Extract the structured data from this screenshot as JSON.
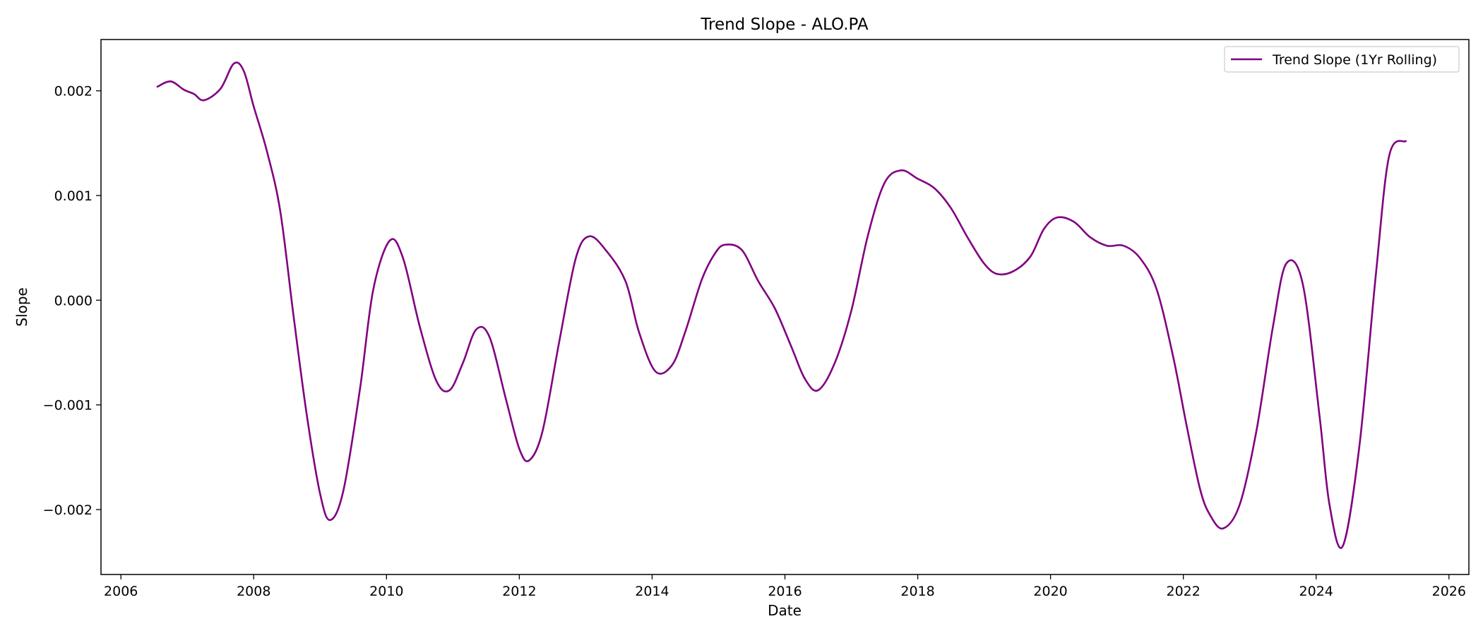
{
  "chart_data": {
    "type": "line",
    "title": "Trend Slope - ALO.PA",
    "xlabel": "Date",
    "ylabel": "Slope",
    "xlim": [
      2005.7,
      2026.3
    ],
    "ylim": [
      -0.00262,
      0.00249
    ],
    "x_ticks": [
      2006,
      2008,
      2010,
      2012,
      2014,
      2016,
      2018,
      2020,
      2022,
      2024,
      2026
    ],
    "y_ticks": [
      0.002,
      0.001,
      0.0,
      -0.001,
      -0.002
    ],
    "y_tick_labels": [
      "0.002",
      "0.001",
      "0.000",
      "−0.001",
      "−0.002"
    ],
    "grid": false,
    "legend": "top-right",
    "series": [
      {
        "name": "Trend Slope (1Yr Rolling)",
        "color": "#800080",
        "x": [
          2006.55,
          2006.75,
          2006.95,
          2007.1,
          2007.25,
          2007.5,
          2007.7,
          2007.85,
          2008.0,
          2008.2,
          2008.4,
          2008.6,
          2008.8,
          2009.0,
          2009.15,
          2009.35,
          2009.6,
          2009.8,
          2010.05,
          2010.25,
          2010.5,
          2010.75,
          2010.95,
          2011.15,
          2011.35,
          2011.55,
          2011.8,
          2012.0,
          2012.15,
          2012.35,
          2012.6,
          2012.85,
          2013.05,
          2013.3,
          2013.6,
          2013.8,
          2014.05,
          2014.3,
          2014.5,
          2014.75,
          2014.95,
          2015.1,
          2015.35,
          2015.6,
          2015.85,
          2016.1,
          2016.3,
          2016.5,
          2016.75,
          2017.0,
          2017.25,
          2017.5,
          2017.75,
          2018.0,
          2018.25,
          2018.5,
          2018.75,
          2019.0,
          2019.2,
          2019.45,
          2019.7,
          2019.9,
          2020.1,
          2020.35,
          2020.6,
          2020.85,
          2021.1,
          2021.35,
          2021.6,
          2021.85,
          2022.05,
          2022.25,
          2022.4,
          2022.6,
          2022.85,
          2023.1,
          2023.35,
          2023.55,
          2023.8,
          2024.05,
          2024.2,
          2024.4,
          2024.65,
          2024.9,
          2025.1,
          2025.35
        ],
        "y": [
          0.00204,
          0.00209,
          0.00201,
          0.00197,
          0.00191,
          0.00202,
          0.00226,
          0.00219,
          0.00185,
          0.00142,
          0.00085,
          -0.00015,
          -0.0011,
          -0.00185,
          -0.0021,
          -0.00182,
          -0.00085,
          0.0001,
          0.00057,
          0.0004,
          -0.00025,
          -0.00077,
          -0.00086,
          -0.0006,
          -0.00028,
          -0.00035,
          -0.00095,
          -0.00142,
          -0.00153,
          -0.00125,
          -0.0004,
          0.0004,
          0.00061,
          0.00048,
          0.00018,
          -0.0003,
          -0.00068,
          -0.00062,
          -0.0003,
          0.0002,
          0.00045,
          0.00053,
          0.00048,
          0.00018,
          -8e-05,
          -0.00045,
          -0.00075,
          -0.00086,
          -0.0006,
          -0.0001,
          0.00062,
          0.00112,
          0.00124,
          0.00116,
          0.00107,
          0.00088,
          0.0006,
          0.00035,
          0.00025,
          0.00028,
          0.00042,
          0.00068,
          0.00079,
          0.00075,
          0.0006,
          0.00052,
          0.00052,
          0.0004,
          0.0001,
          -0.00055,
          -0.0012,
          -0.0018,
          -0.00205,
          -0.00218,
          -0.00195,
          -0.00125,
          -0.00025,
          0.00035,
          0.00015,
          -0.0011,
          -0.00195,
          -0.00235,
          -0.0014,
          0.00025,
          0.00138,
          0.00152
        ]
      }
    ]
  }
}
